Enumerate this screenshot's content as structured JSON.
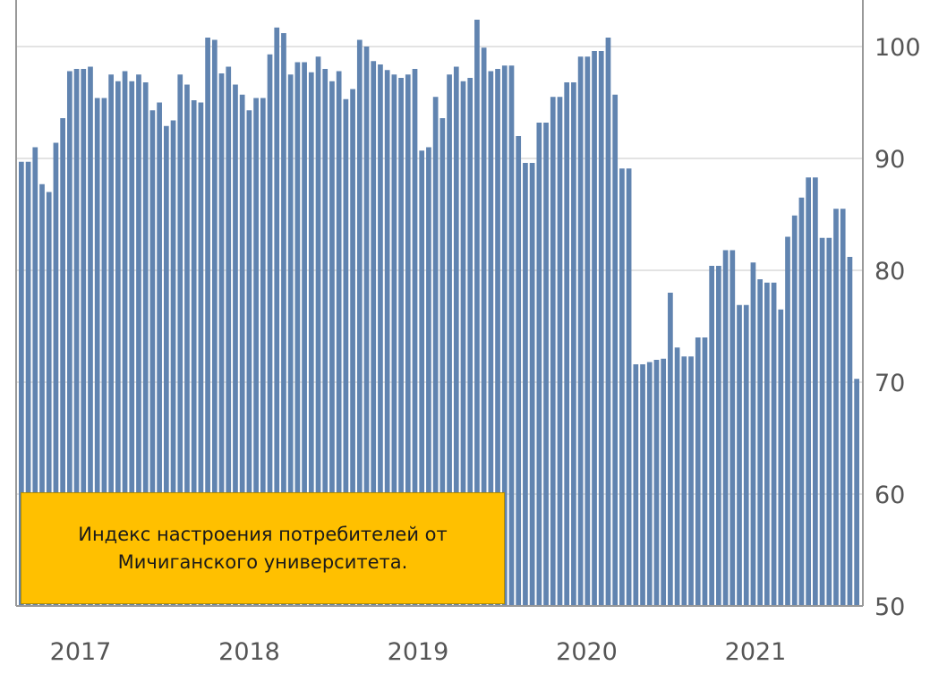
{
  "chart_data": {
    "type": "bar",
    "title": "Индекс настроения потребителей от Мичиганского университета.",
    "xlabel": "",
    "ylabel": "",
    "ylim": [
      50,
      104
    ],
    "yticks": [
      50,
      60,
      70,
      80,
      90,
      100
    ],
    "y_axis_position": "right",
    "grid": true,
    "legend_placement": "bottom-left",
    "x_tick_labels": [
      "2017",
      "2018",
      "2019",
      "2020",
      "2021"
    ],
    "bar_color": "#6184b0",
    "legend_color": "#ffc000",
    "series": [
      {
        "values": [
          89.7,
          89.7,
          91.0,
          87.7,
          87.0,
          91.4,
          93.6,
          97.8,
          98.0,
          98.0,
          98.2,
          95.4,
          95.4,
          97.5,
          96.9,
          97.8,
          96.9,
          97.5,
          96.8,
          94.3,
          95.0,
          92.9,
          93.4,
          97.5,
          96.6,
          95.2,
          95.0,
          100.8,
          100.6,
          97.6,
          98.2,
          96.6,
          95.7,
          94.3,
          95.4,
          95.4,
          99.3,
          101.7,
          101.2,
          97.5,
          98.6,
          98.6,
          97.7,
          99.1,
          98.0,
          96.9,
          97.8,
          95.3,
          96.2,
          100.6,
          100.0,
          98.7,
          98.4,
          97.9,
          97.5,
          97.2,
          97.5,
          98.0,
          90.7,
          91.0,
          95.5,
          93.6,
          97.5,
          98.2,
          96.9,
          97.2,
          102.4,
          99.9,
          97.8,
          98.0,
          98.3,
          98.3,
          92.0,
          89.6,
          89.6,
          93.2,
          93.2,
          95.5,
          95.5,
          96.8,
          96.8,
          99.1,
          99.1,
          99.6,
          99.6,
          100.8,
          95.7,
          89.1,
          89.1,
          71.6,
          71.6,
          71.8,
          72.0,
          72.1,
          78.0,
          73.1,
          72.3,
          72.3,
          74.0,
          74.0,
          80.4,
          80.4,
          81.8,
          81.8,
          76.9,
          76.9,
          80.7,
          79.2,
          78.9,
          78.9,
          76.5,
          83.0,
          84.9,
          86.5,
          88.3,
          88.3,
          82.9,
          82.9,
          85.5,
          85.5,
          81.2,
          70.3
        ]
      }
    ]
  }
}
